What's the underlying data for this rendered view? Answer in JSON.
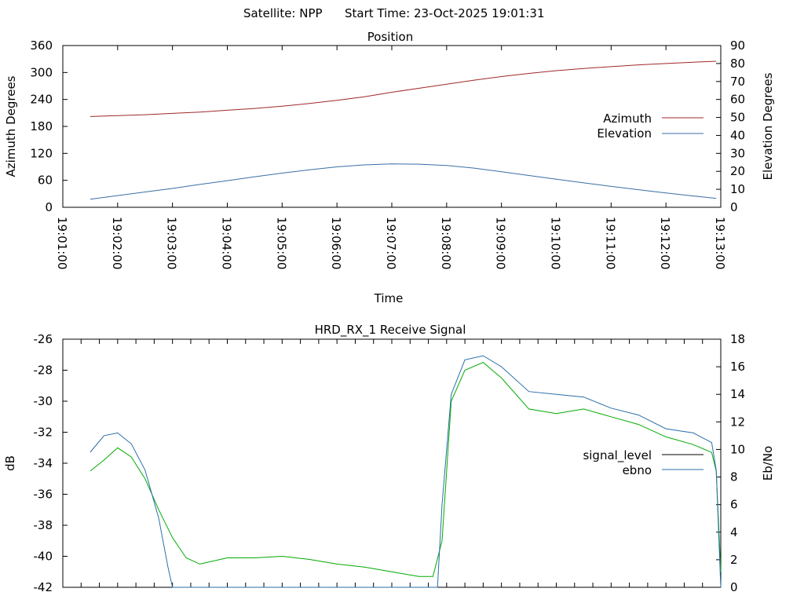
{
  "header": {
    "satellite": "Satellite: NPP",
    "start_time": "Start Time: 23-Oct-2025 19:01:31"
  },
  "colors": {
    "azimuth": "#a02828",
    "elevation": "#3a6ea5",
    "signal_level": "#000000",
    "ebno": "#2a6ea8",
    "green_trace": "#00aa00",
    "red_trace": "#a02828"
  },
  "chart_data": [
    {
      "type": "line",
      "title": "Position",
      "xlabel": "Time",
      "ylabel": "Azimuth Degrees",
      "y2label": "Elevation Degrees",
      "ylim": [
        0,
        360
      ],
      "y2lim": [
        0,
        90
      ],
      "yticks": [
        "0",
        "60",
        "120",
        "180",
        "240",
        "300",
        "360"
      ],
      "y2ticks": [
        "0",
        "10",
        "20",
        "30",
        "40",
        "50",
        "60",
        "70",
        "80",
        "90"
      ],
      "xticks": [
        "19:01:00",
        "19:02:00",
        "19:03:00",
        "19:04:00",
        "19:05:00",
        "19:06:00",
        "19:07:00",
        "19:08:00",
        "19:09:00",
        "19:10:00",
        "19:11:00",
        "19:12:00",
        "19:13:00"
      ],
      "xlim": [
        "19:01:00",
        "19:13:00"
      ],
      "grid": false,
      "legend": "right",
      "series": [
        {
          "name": "Azimuth",
          "axis": "left",
          "x": [
            "19:01:30",
            "19:02:00",
            "19:02:30",
            "19:03:00",
            "19:03:30",
            "19:04:00",
            "19:04:30",
            "19:05:00",
            "19:05:30",
            "19:06:00",
            "19:06:30",
            "19:07:00",
            "19:07:30",
            "19:08:00",
            "19:08:30",
            "19:09:00",
            "19:09:30",
            "19:10:00",
            "19:10:30",
            "19:11:00",
            "19:11:30",
            "19:12:00",
            "19:12:30",
            "19:12:55"
          ],
          "values": [
            202,
            204,
            206,
            209,
            212,
            216,
            220,
            225,
            231,
            238,
            246,
            256,
            265,
            274,
            283,
            291,
            298,
            304,
            309,
            313,
            317,
            320,
            323,
            325
          ]
        },
        {
          "name": "Elevation",
          "axis": "right",
          "x": [
            "19:01:30",
            "19:02:00",
            "19:02:30",
            "19:03:00",
            "19:03:30",
            "19:04:00",
            "19:04:30",
            "19:05:00",
            "19:05:30",
            "19:06:00",
            "19:06:30",
            "19:07:00",
            "19:07:30",
            "19:08:00",
            "19:08:30",
            "19:09:00",
            "19:09:30",
            "19:10:00",
            "19:10:30",
            "19:11:00",
            "19:11:30",
            "19:12:00",
            "19:12:30",
            "19:12:55"
          ],
          "values": [
            4.5,
            6.5,
            8.5,
            10.5,
            12.7,
            14.8,
            17.0,
            19.0,
            20.9,
            22.5,
            23.6,
            24.1,
            24.0,
            23.3,
            21.8,
            19.8,
            17.7,
            15.6,
            13.6,
            11.6,
            9.8,
            8.0,
            6.3,
            5.0
          ]
        }
      ]
    },
    {
      "type": "line",
      "title": "HRD_RX_1 Receive Signal",
      "ylabel": "dB",
      "y2label": "Eb/No",
      "ylim": [
        -42,
        -26
      ],
      "y2lim": [
        0,
        18
      ],
      "yticks": [
        "-42",
        "-40",
        "-38",
        "-36",
        "-34",
        "-32",
        "-30",
        "-28",
        "-26"
      ],
      "y2ticks": [
        "0",
        "2",
        "4",
        "6",
        "8",
        "10",
        "12",
        "14",
        "16",
        "18"
      ],
      "xlim": [
        "19:01:00",
        "19:13:00"
      ],
      "grid": false,
      "legend": "right",
      "series": [
        {
          "name": "signal_level",
          "axis": "left",
          "x": [
            "19:01:30",
            "19:01:45",
            "19:02:00",
            "19:02:15",
            "19:02:30",
            "19:02:45",
            "19:03:00",
            "19:03:15",
            "19:03:30",
            "19:04:00",
            "19:04:30",
            "19:05:00",
            "19:05:30",
            "19:06:00",
            "19:06:30",
            "19:07:00",
            "19:07:30",
            "19:07:45",
            "19:07:55",
            "19:08:05",
            "19:08:20",
            "19:08:40",
            "19:09:00",
            "19:09:30",
            "19:10:00",
            "19:10:30",
            "19:11:00",
            "19:11:30",
            "19:12:00",
            "19:12:30",
            "19:12:50",
            "19:12:55",
            "19:13:00"
          ],
          "values": [
            -34.5,
            -33.8,
            -33.0,
            -33.6,
            -35.0,
            -37.0,
            -38.8,
            -40.1,
            -40.5,
            -40.1,
            -40.1,
            -40.0,
            -40.2,
            -40.5,
            -40.7,
            -41.0,
            -41.3,
            -41.3,
            -39.0,
            -30.0,
            -28.0,
            -27.5,
            -28.5,
            -30.5,
            -30.8,
            -30.5,
            -31.0,
            -31.5,
            -32.3,
            -32.8,
            -33.3,
            -34.5,
            -41.0
          ]
        },
        {
          "name": "ebno",
          "axis": "right",
          "x": [
            "19:01:30",
            "19:01:45",
            "19:02:00",
            "19:02:15",
            "19:02:30",
            "19:02:45",
            "19:02:55",
            "19:03:00",
            "19:07:50",
            "19:07:55",
            "19:08:05",
            "19:08:20",
            "19:08:40",
            "19:09:00",
            "19:09:30",
            "19:10:00",
            "19:10:30",
            "19:11:00",
            "19:11:30",
            "19:12:00",
            "19:12:30",
            "19:12:50",
            "19:12:55",
            "19:13:00"
          ],
          "values": [
            9.8,
            11.0,
            11.2,
            10.4,
            8.5,
            5.0,
            1.5,
            0.0,
            0.0,
            6.0,
            14.0,
            16.5,
            16.8,
            16.0,
            14.2,
            14.0,
            13.8,
            13.0,
            12.5,
            11.5,
            11.2,
            10.5,
            8.5,
            0.0
          ]
        }
      ]
    }
  ]
}
